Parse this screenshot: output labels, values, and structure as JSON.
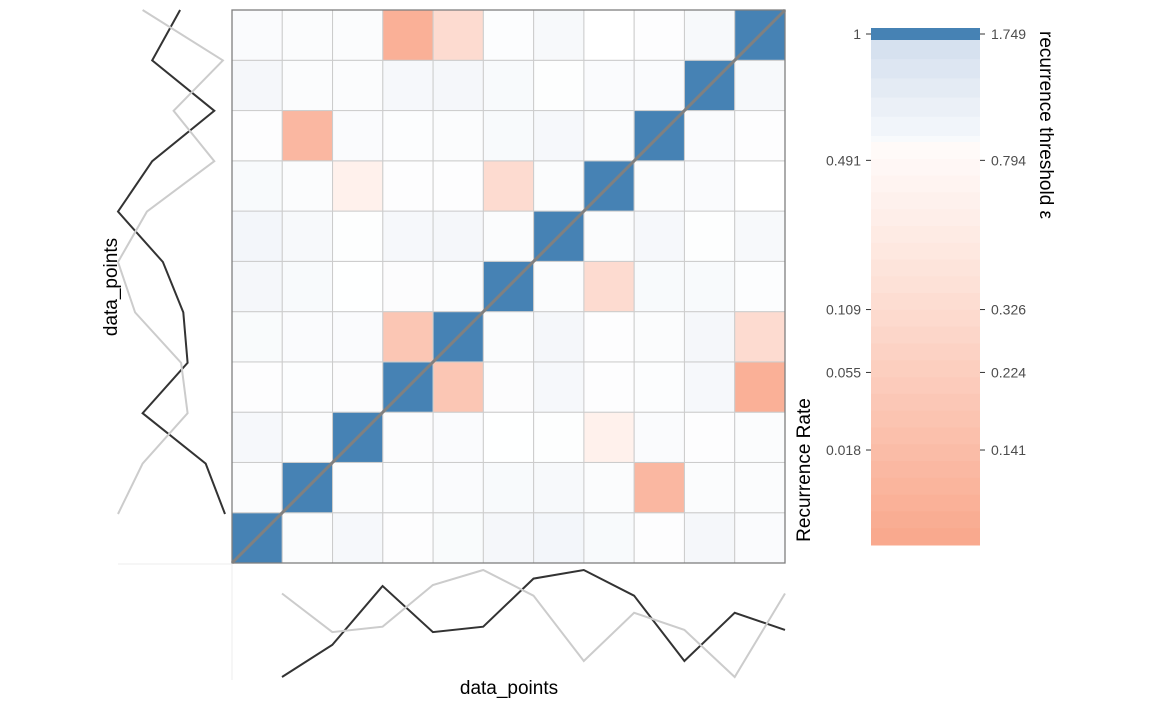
{
  "colors": {
    "recurrence": "#4682b4",
    "diagonal_line": "#808080",
    "high_distance": "#f9a98e",
    "mid_distance": "#fff5f2",
    "series_dark": "#333333",
    "series_light": "#cccccc",
    "grid_line": "#cccccc"
  },
  "chart_data": {
    "type": "heatmap",
    "x_title": "data_points",
    "y_title": "data_points",
    "n": 11,
    "diagonal": true,
    "matrix_rows_bottom_to_top": [
      [
        0.0,
        0.7,
        0.6,
        0.75,
        0.67,
        0.58,
        0.54,
        0.64,
        0.75,
        0.57,
        0.69
      ],
      [
        0.7,
        0.0,
        0.71,
        0.73,
        0.68,
        0.64,
        0.62,
        0.71,
        0.88,
        0.7,
        0.71
      ],
      [
        0.6,
        0.71,
        0.0,
        0.72,
        0.68,
        0.78,
        0.76,
        0.8,
        0.68,
        0.74,
        0.71
      ],
      [
        0.75,
        0.73,
        0.72,
        0.0,
        0.86,
        0.72,
        0.59,
        0.75,
        0.73,
        0.6,
        0.89
      ],
      [
        0.67,
        0.68,
        0.68,
        0.86,
        0.0,
        0.71,
        0.57,
        0.74,
        0.71,
        0.57,
        0.83
      ],
      [
        0.58,
        0.64,
        0.78,
        0.72,
        0.71,
        0.0,
        0.7,
        0.83,
        0.65,
        0.65,
        0.73
      ],
      [
        0.54,
        0.62,
        0.76,
        0.59,
        0.57,
        0.7,
        0.0,
        0.71,
        0.6,
        0.76,
        0.62
      ],
      [
        0.64,
        0.71,
        0.8,
        0.75,
        0.74,
        0.83,
        0.71,
        0.0,
        0.71,
        0.68,
        0.79
      ],
      [
        0.75,
        0.88,
        0.68,
        0.73,
        0.71,
        0.65,
        0.6,
        0.71,
        0.0,
        0.68,
        0.74
      ],
      [
        0.57,
        0.7,
        0.71,
        0.6,
        0.57,
        0.65,
        0.76,
        0.68,
        0.68,
        0.0,
        0.62
      ],
      [
        0.69,
        0.71,
        0.71,
        0.89,
        0.83,
        0.73,
        0.62,
        0.79,
        0.74,
        0.62,
        0.0
      ]
    ],
    "recurrence_threshold": 0.794,
    "marginal_x": {
      "dark": [
        0.0,
        0.3,
        0.85,
        0.42,
        0.47,
        0.92,
        1.0,
        0.76,
        0.15,
        0.6,
        0.44
      ],
      "light": [
        0.78,
        0.42,
        0.47,
        0.86,
        1.0,
        0.76,
        0.15,
        0.6,
        0.44,
        0.0,
        0.78
      ]
    },
    "marginal_y_top_to_bottom": {
      "dark": [
        0.58,
        0.32,
        0.9,
        0.32,
        0.0,
        0.42,
        0.61,
        0.65,
        0.23,
        0.82,
        1.0
      ],
      "light": [
        0.23,
        0.98,
        0.52,
        0.9,
        0.27,
        0.0,
        0.16,
        0.59,
        0.65,
        0.23,
        0.0
      ]
    },
    "legend": {
      "left_title": "Recurrence Rate",
      "right_title": "recurrence threshold ε",
      "left_labels": [
        "1",
        "0.491",
        "0.109",
        "0.055",
        "0.018"
      ],
      "right_labels": [
        "1.749",
        "0.794",
        "0.326",
        "0.224",
        "0.141"
      ],
      "label_eps_values": [
        1.749,
        0.794,
        0.326,
        0.224,
        0.141
      ],
      "eps_min": 0.08,
      "eps_max": 1.749
    }
  }
}
